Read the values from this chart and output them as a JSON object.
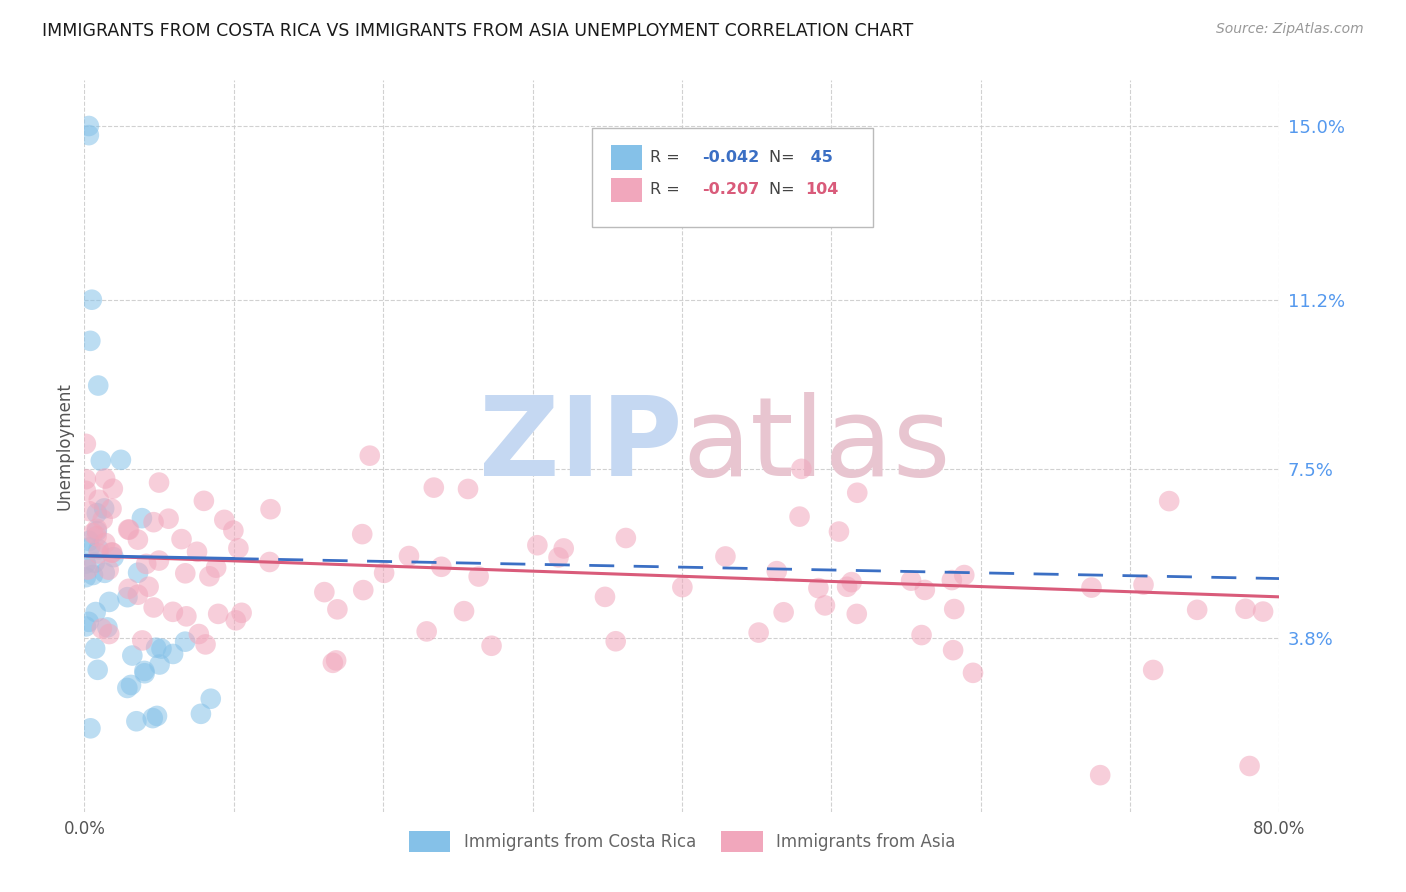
{
  "title": "IMMIGRANTS FROM COSTA RICA VS IMMIGRANTS FROM ASIA UNEMPLOYMENT CORRELATION CHART",
  "source": "Source: ZipAtlas.com",
  "ylabel": "Unemployment",
  "xlim": [
    0.0,
    0.8
  ],
  "ylim": [
    0.0,
    0.16
  ],
  "yticks": [
    0.038,
    0.075,
    0.112,
    0.15
  ],
  "ytick_labels": [
    "3.8%",
    "7.5%",
    "11.2%",
    "15.0%"
  ],
  "xticks": [
    0.0,
    0.1,
    0.2,
    0.3,
    0.4,
    0.5,
    0.6,
    0.7,
    0.8
  ],
  "xtick_labels": [
    "0.0%",
    "",
    "",
    "",
    "",
    "",
    "",
    "",
    "80.0%"
  ],
  "costa_rica_R": -0.042,
  "costa_rica_N": 45,
  "asia_R": -0.207,
  "asia_N": 104,
  "blue_color": "#85C1E8",
  "pink_color": "#F1A7BC",
  "blue_line_color": "#3B6FC4",
  "pink_line_color": "#D95B7A",
  "background_color": "#FFFFFF",
  "watermark_zip_color": "#C5D8F2",
  "watermark_atlas_color": "#E8C5D0",
  "legend_blue_text": "#3B6FC4",
  "legend_pink_text": "#D95B7A",
  "legend_label_color": "#444444",
  "axis_tick_color_x": "#555555",
  "axis_tick_color_y": "#5599EE",
  "cr_line_start_y": 0.056,
  "cr_line_end_y": 0.051,
  "asia_line_start_y": 0.056,
  "asia_line_end_y": 0.047
}
